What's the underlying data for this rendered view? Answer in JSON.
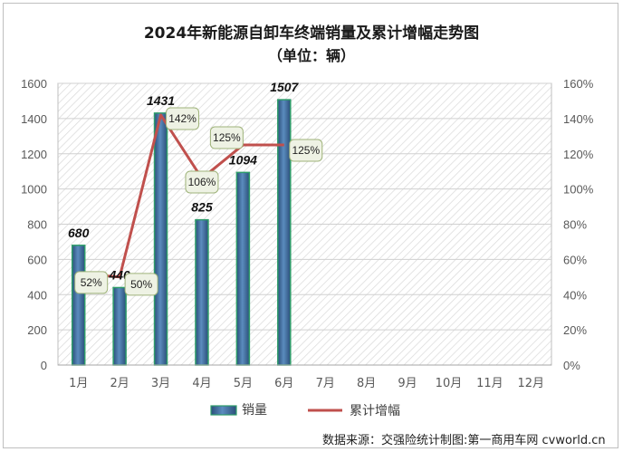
{
  "chart_data": {
    "type": "bar",
    "title": "2024年新能源自卸车终端销量及累计增幅走势图",
    "subtitle": "（单位：辆）",
    "categories": [
      "1月",
      "2月",
      "3月",
      "4月",
      "5月",
      "6月",
      "7月",
      "8月",
      "9月",
      "10月",
      "11月",
      "12月"
    ],
    "series": [
      {
        "name": "销量",
        "type": "bar",
        "axis": "left",
        "values": [
          680,
          440,
          1431,
          825,
          1094,
          1507,
          null,
          null,
          null,
          null,
          null,
          null
        ],
        "labels": [
          "680",
          "440",
          "1431",
          "825",
          "1094",
          "1507"
        ]
      },
      {
        "name": "累计增幅",
        "type": "line",
        "axis": "right",
        "values": [
          52,
          50,
          142,
          106,
          125,
          125,
          null,
          null,
          null,
          null,
          null,
          null
        ],
        "labels": [
          "52%",
          "50%",
          "142%",
          "106%",
          "125%",
          "125%"
        ]
      }
    ],
    "ylim_left": [
      0,
      1600
    ],
    "yticks_left": [
      "0",
      "200",
      "400",
      "600",
      "800",
      "1000",
      "1200",
      "1400",
      "1600"
    ],
    "ylim_right": [
      0,
      160
    ],
    "yticks_right": [
      "0%",
      "20%",
      "40%",
      "60%",
      "80%",
      "100%",
      "120%",
      "140%",
      "160%"
    ],
    "legend_position": "bottom",
    "colors": {
      "bar": "#3f6d9c",
      "bar_edge": "#2e9c6a",
      "line": "#c0504d",
      "label_box": "#eef2e4",
      "label_box_border": "#9fb37a"
    }
  },
  "source_text": "数据来源：交强险统计制图:第一商用车网 cvworld.cn"
}
